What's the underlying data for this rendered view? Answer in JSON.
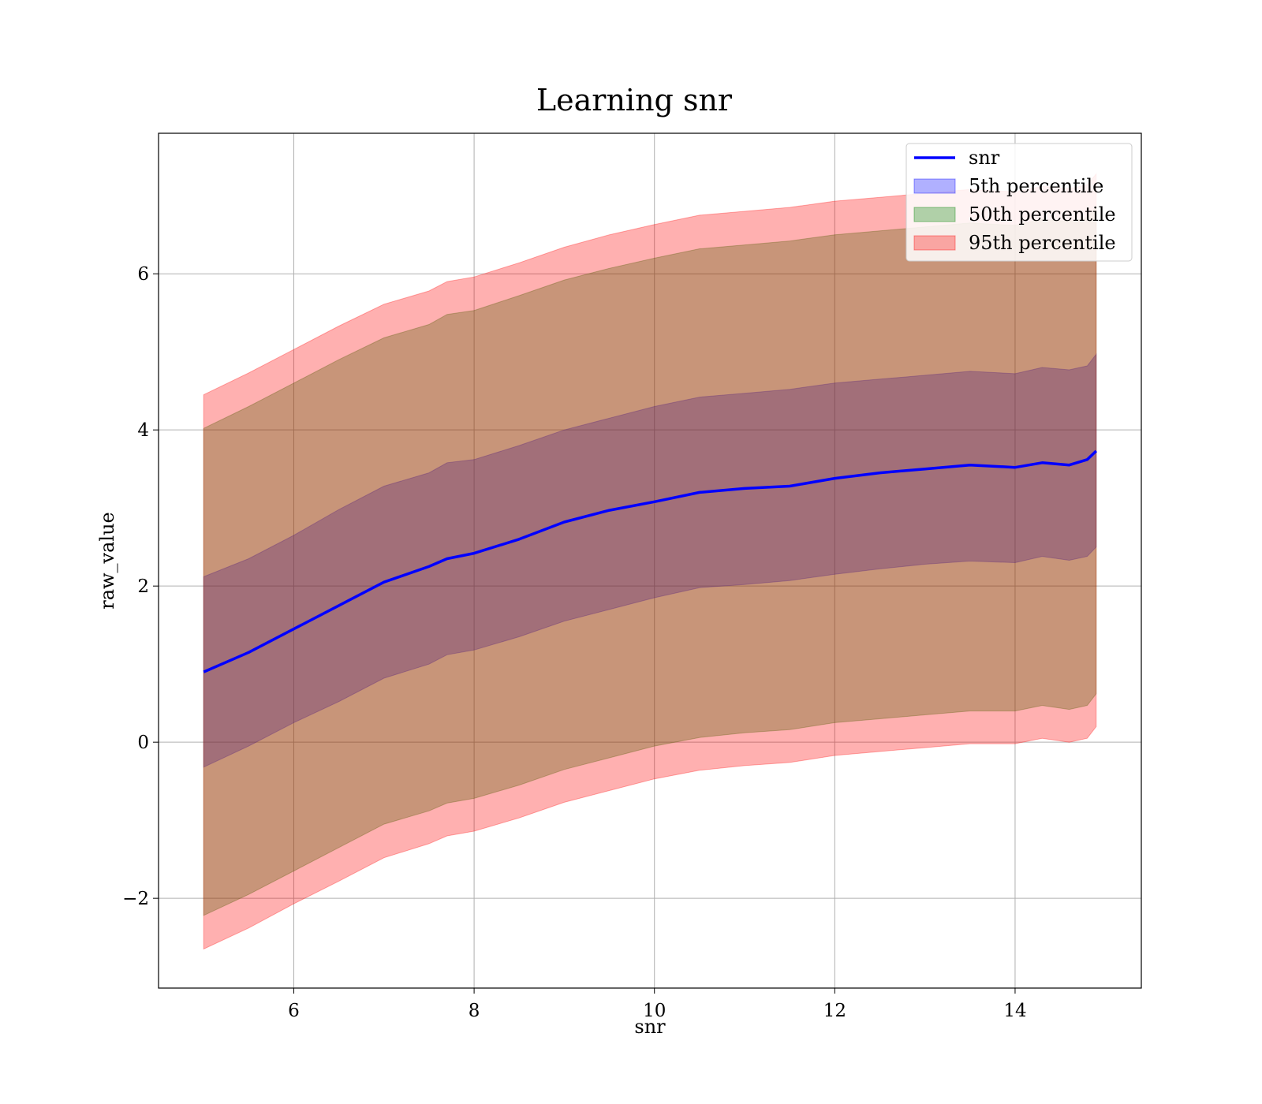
{
  "chart_data": {
    "type": "area",
    "title": "Learning snr",
    "xlabel": "snr",
    "ylabel": "raw_value",
    "xlim": [
      4.5,
      15.4
    ],
    "ylim": [
      -3.15,
      7.8
    ],
    "xticks": [
      6,
      8,
      10,
      12,
      14
    ],
    "xtick_labels": [
      "6",
      "8",
      "10",
      "12",
      "14"
    ],
    "yticks": [
      -2,
      0,
      2,
      4,
      6
    ],
    "ytick_labels": [
      "−2",
      "0",
      "2",
      "4",
      "6"
    ],
    "grid": true,
    "legend_position": "upper right",
    "x": [
      5.0,
      5.5,
      6.0,
      6.5,
      7.0,
      7.5,
      7.7,
      8.0,
      8.5,
      9.0,
      9.5,
      10.0,
      10.5,
      11.0,
      11.5,
      12.0,
      12.5,
      13.0,
      13.5,
      14.0,
      14.3,
      14.6,
      14.8,
      14.9
    ],
    "series": [
      {
        "name": "snr",
        "kind": "line",
        "color": "#0000ff",
        "values": [
          0.9,
          1.15,
          1.45,
          1.75,
          2.05,
          2.25,
          2.35,
          2.42,
          2.6,
          2.82,
          2.97,
          3.08,
          3.2,
          3.25,
          3.28,
          3.38,
          3.45,
          3.5,
          3.55,
          3.52,
          3.58,
          3.55,
          3.62,
          3.73
        ]
      },
      {
        "name": "5th percentile",
        "kind": "band",
        "color": "#0000ff",
        "lower": [
          -0.32,
          -0.05,
          0.25,
          0.52,
          0.82,
          1.0,
          1.12,
          1.18,
          1.35,
          1.55,
          1.7,
          1.85,
          1.98,
          2.02,
          2.07,
          2.15,
          2.22,
          2.28,
          2.32,
          2.3,
          2.38,
          2.33,
          2.38,
          2.5
        ],
        "upper": [
          2.12,
          2.35,
          2.65,
          2.98,
          3.28,
          3.45,
          3.58,
          3.62,
          3.8,
          4.0,
          4.15,
          4.3,
          4.42,
          4.47,
          4.52,
          4.6,
          4.65,
          4.7,
          4.75,
          4.72,
          4.8,
          4.77,
          4.82,
          4.97
        ]
      },
      {
        "name": "50th percentile",
        "kind": "band",
        "color": "#008000",
        "lower": [
          -2.22,
          -1.95,
          -1.65,
          -1.35,
          -1.05,
          -0.88,
          -0.78,
          -0.72,
          -0.55,
          -0.35,
          -0.2,
          -0.05,
          0.06,
          0.12,
          0.16,
          0.25,
          0.3,
          0.35,
          0.4,
          0.4,
          0.47,
          0.42,
          0.47,
          0.62
        ],
        "upper": [
          4.02,
          4.3,
          4.6,
          4.9,
          5.18,
          5.35,
          5.48,
          5.53,
          5.72,
          5.92,
          6.07,
          6.2,
          6.32,
          6.37,
          6.42,
          6.5,
          6.55,
          6.6,
          6.65,
          6.62,
          6.7,
          6.67,
          6.72,
          6.85
        ]
      },
      {
        "name": "95th percentile",
        "kind": "band",
        "color": "#ff0000",
        "lower": [
          -2.65,
          -2.38,
          -2.07,
          -1.78,
          -1.48,
          -1.3,
          -1.2,
          -1.14,
          -0.97,
          -0.77,
          -0.62,
          -0.47,
          -0.36,
          -0.3,
          -0.26,
          -0.17,
          -0.12,
          -0.07,
          -0.02,
          -0.02,
          0.05,
          0.0,
          0.05,
          0.2
        ],
        "upper": [
          4.45,
          4.73,
          5.03,
          5.33,
          5.61,
          5.78,
          5.9,
          5.96,
          6.14,
          6.34,
          6.5,
          6.63,
          6.75,
          6.8,
          6.85,
          6.93,
          6.98,
          7.03,
          7.08,
          7.05,
          7.12,
          7.09,
          7.14,
          7.28
        ]
      }
    ]
  }
}
